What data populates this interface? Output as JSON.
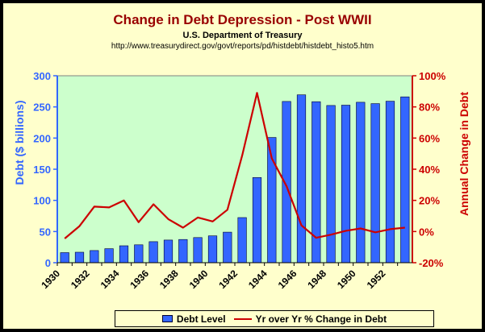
{
  "chart_data": {
    "type": "bar",
    "title": "Change in Debt Depression - Post WWII",
    "subtitle": "U.S. Department of Treasury",
    "source": "http://www.treasurydirect.gov/govt/reports/pd/histdebt/histdebt_histo5.htm",
    "x": [
      1930,
      1931,
      1932,
      1933,
      1934,
      1935,
      1936,
      1937,
      1938,
      1939,
      1940,
      1941,
      1942,
      1943,
      1944,
      1945,
      1946,
      1947,
      1948,
      1949,
      1950,
      1951,
      1952,
      1953
    ],
    "xticks": [
      "1930",
      "1932",
      "1934",
      "1936",
      "1938",
      "1940",
      "1942",
      "1944",
      "1946",
      "1948",
      "1950",
      "1952"
    ],
    "ylabel": "Debt ($ billions)",
    "ylim": [
      0,
      300
    ],
    "yticks": [
      "0",
      "50",
      "100",
      "150",
      "200",
      "250",
      "300"
    ],
    "y2label": "Annual Change in Debt",
    "y2lim": [
      -20,
      100
    ],
    "y2ticks": [
      "-20%",
      "0%",
      "20%",
      "40%",
      "60%",
      "80%",
      "100%"
    ],
    "series": [
      {
        "name": "Debt Level",
        "type": "bar",
        "axis": "left",
        "color": "#3366FF",
        "values": [
          16.2,
          16.8,
          19.5,
          22.5,
          27.1,
          28.7,
          33.8,
          36.4,
          37.2,
          40.4,
          43.0,
          49.0,
          72.4,
          136.7,
          201.0,
          258.7,
          269.4,
          258.3,
          252.3,
          252.8,
          257.4,
          255.2,
          259.1,
          266.1
        ]
      },
      {
        "name": "Yr over Yr % Change in Debt",
        "type": "line",
        "axis": "right",
        "color": "#CC0000",
        "values": [
          -4.5,
          3.5,
          16,
          15.5,
          20,
          6,
          17.5,
          8,
          2.5,
          9,
          6.5,
          14,
          49,
          89,
          47,
          29,
          4,
          -4,
          -2,
          0.5,
          2,
          -0.5,
          1.5,
          2.5
        ]
      }
    ],
    "plot_background": "#CCFFCC",
    "page_background": "#FFFFCC",
    "left_axis_color": "#3366FF",
    "right_axis_color": "#CC0000",
    "legend": "bottom"
  }
}
